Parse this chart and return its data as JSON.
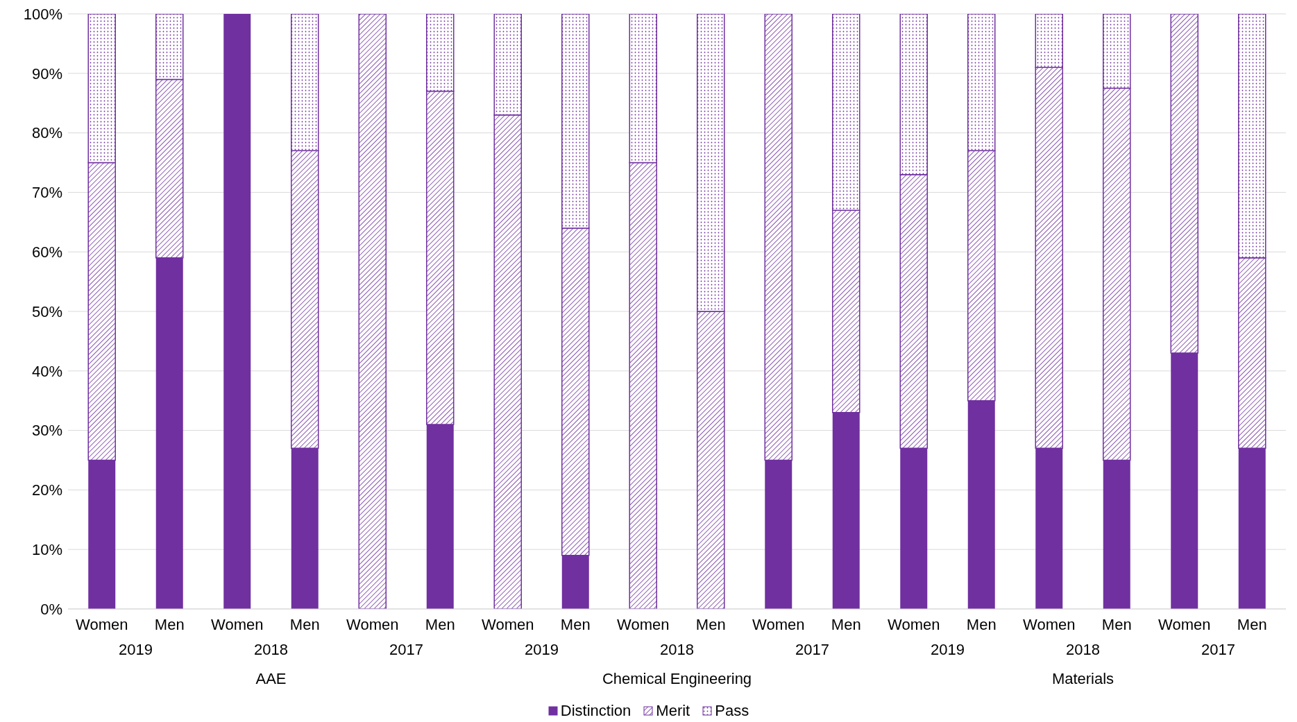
{
  "chart_data": {
    "type": "bar",
    "stacked": true,
    "categories": [
      "Women",
      "Men",
      "Women",
      "Men",
      "Women",
      "Men",
      "Women",
      "Men",
      "Women",
      "Men",
      "Women",
      "Men",
      "Women",
      "Men",
      "Women",
      "Men",
      "Women",
      "Men"
    ],
    "series": [
      {
        "name": "Distinction",
        "color": "#7030a0",
        "values": [
          25,
          59,
          100,
          27,
          0,
          31,
          0,
          9,
          0,
          0,
          25,
          33,
          27,
          35,
          27,
          25,
          43,
          27
        ]
      },
      {
        "name": "Merit",
        "color": "#7030a0",
        "values": [
          50,
          30,
          0,
          50,
          100,
          56,
          83,
          55,
          75,
          50,
          75,
          34,
          46,
          42,
          64,
          62.5,
          57,
          32
        ]
      },
      {
        "name": "Pass",
        "color": "#7030a0",
        "values": [
          25,
          11,
          0,
          23,
          0,
          13,
          17,
          36,
          25,
          50,
          0,
          33,
          27,
          23,
          9,
          12.5,
          0,
          41
        ]
      }
    ],
    "ylim": [
      0,
      100
    ],
    "yticks": [
      {
        "value": 0,
        "label": "0%"
      },
      {
        "value": 10,
        "label": "10%"
      },
      {
        "value": 20,
        "label": "20%"
      },
      {
        "value": 30,
        "label": "30%"
      },
      {
        "value": 40,
        "label": "40%"
      },
      {
        "value": 50,
        "label": "50%"
      },
      {
        "value": 60,
        "label": "60%"
      },
      {
        "value": 70,
        "label": "70%"
      },
      {
        "value": 80,
        "label": "80%"
      },
      {
        "value": 90,
        "label": "90%"
      },
      {
        "value": 100,
        "label": "100%"
      }
    ],
    "grid": "y",
    "legend": "bottom",
    "annotations": [
      "2019",
      "2018",
      "2017",
      "2019",
      "2018",
      "2017",
      "2019",
      "2018",
      "2017",
      "AAE",
      "Chemical Engineering",
      "Materials"
    ]
  }
}
